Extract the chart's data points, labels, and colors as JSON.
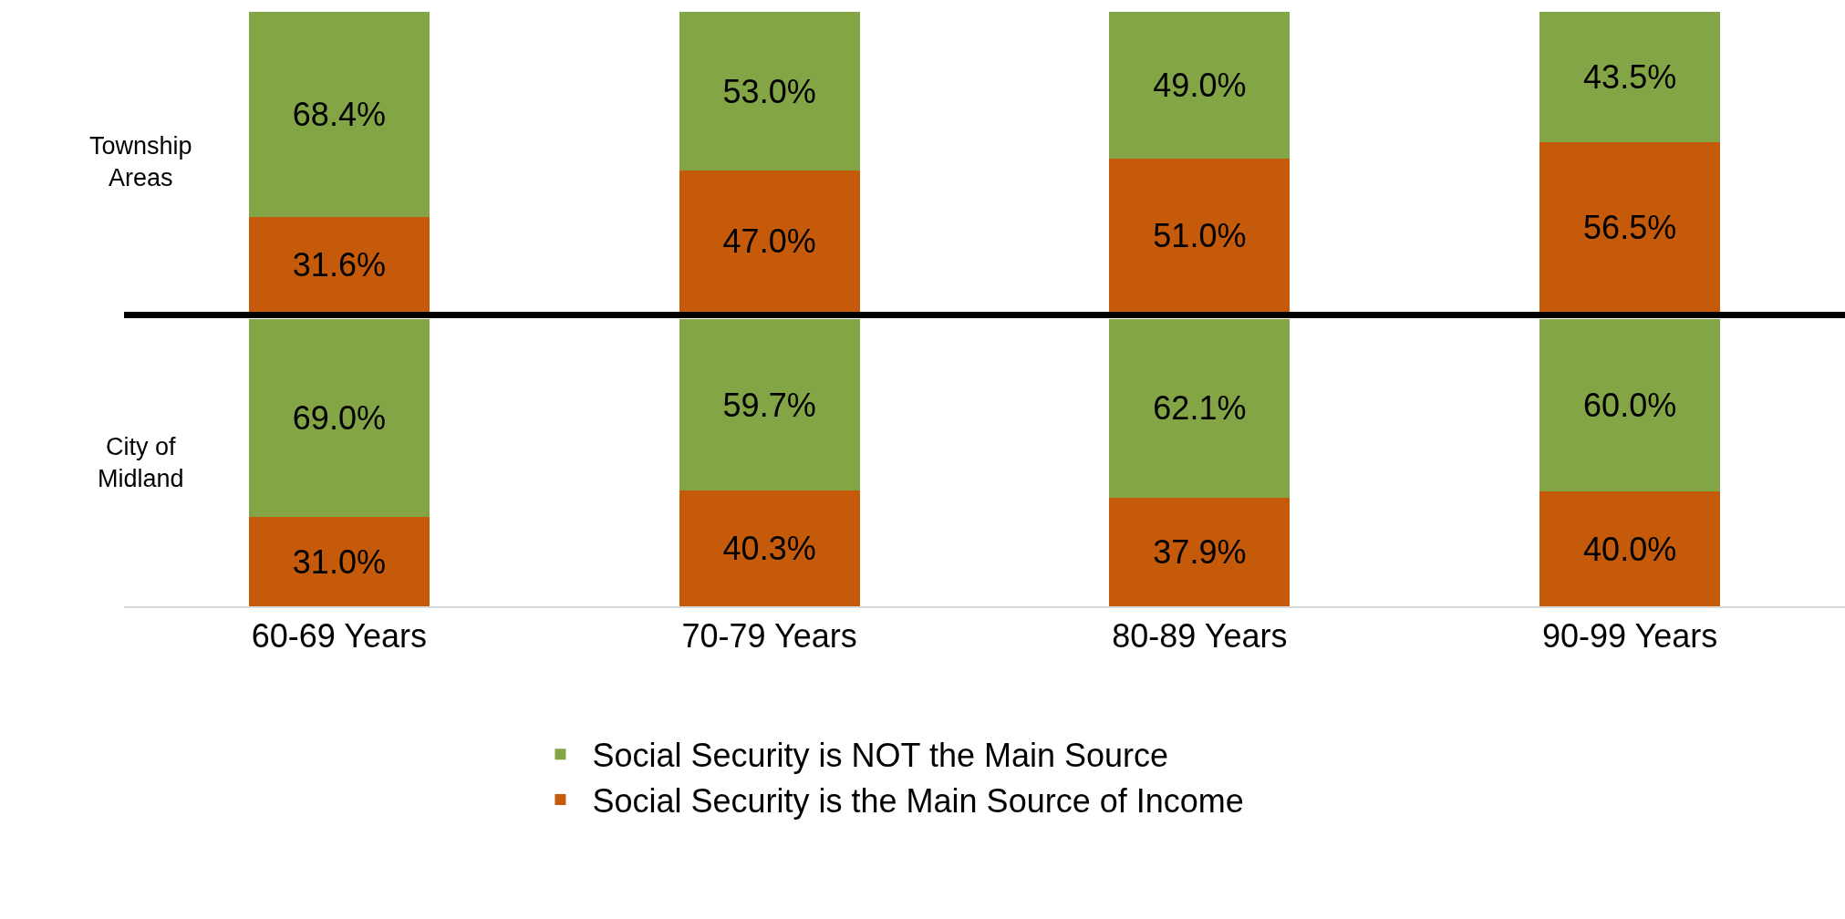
{
  "chart_data": [
    {
      "type": "bar",
      "stacked": true,
      "ylabel": "Township Areas",
      "legend": false,
      "categories": [
        null,
        null,
        null,
        null
      ],
      "series": [
        {
          "color": "#c55a0b",
          "values": [
            31.6,
            47.0,
            51.0,
            56.5
          ],
          "value_labels": [
            "31.6%",
            "47.0%",
            "51.0%",
            "56.5%"
          ]
        },
        {
          "color": "#83a546",
          "values": [
            68.4,
            53.0,
            49.0,
            43.5
          ],
          "value_labels": [
            "68.4%",
            "53.0%",
            "49.0%",
            "43.5%"
          ]
        }
      ]
    },
    {
      "type": "bar",
      "stacked": true,
      "ylabel": "City of Midland",
      "legend": "bottom",
      "categories": [
        "60-69 Years",
        "70-79 Years",
        "80-89 Years",
        "90-99 Years"
      ],
      "series": [
        {
          "name": "Social Security is the Main Source of Income",
          "color": "#c55a0b",
          "values": [
            31.0,
            40.3,
            37.9,
            40.0
          ],
          "value_labels": [
            "31.0%",
            "40.3%",
            "37.9%",
            "40.0%"
          ]
        },
        {
          "name": "Social Security is NOT the Main Source",
          "color": "#83a546",
          "values": [
            69.0,
            59.7,
            62.1,
            60.0
          ],
          "value_labels": [
            "69.0%",
            "59.7%",
            "62.1%",
            "60.0%"
          ]
        }
      ]
    }
  ]
}
